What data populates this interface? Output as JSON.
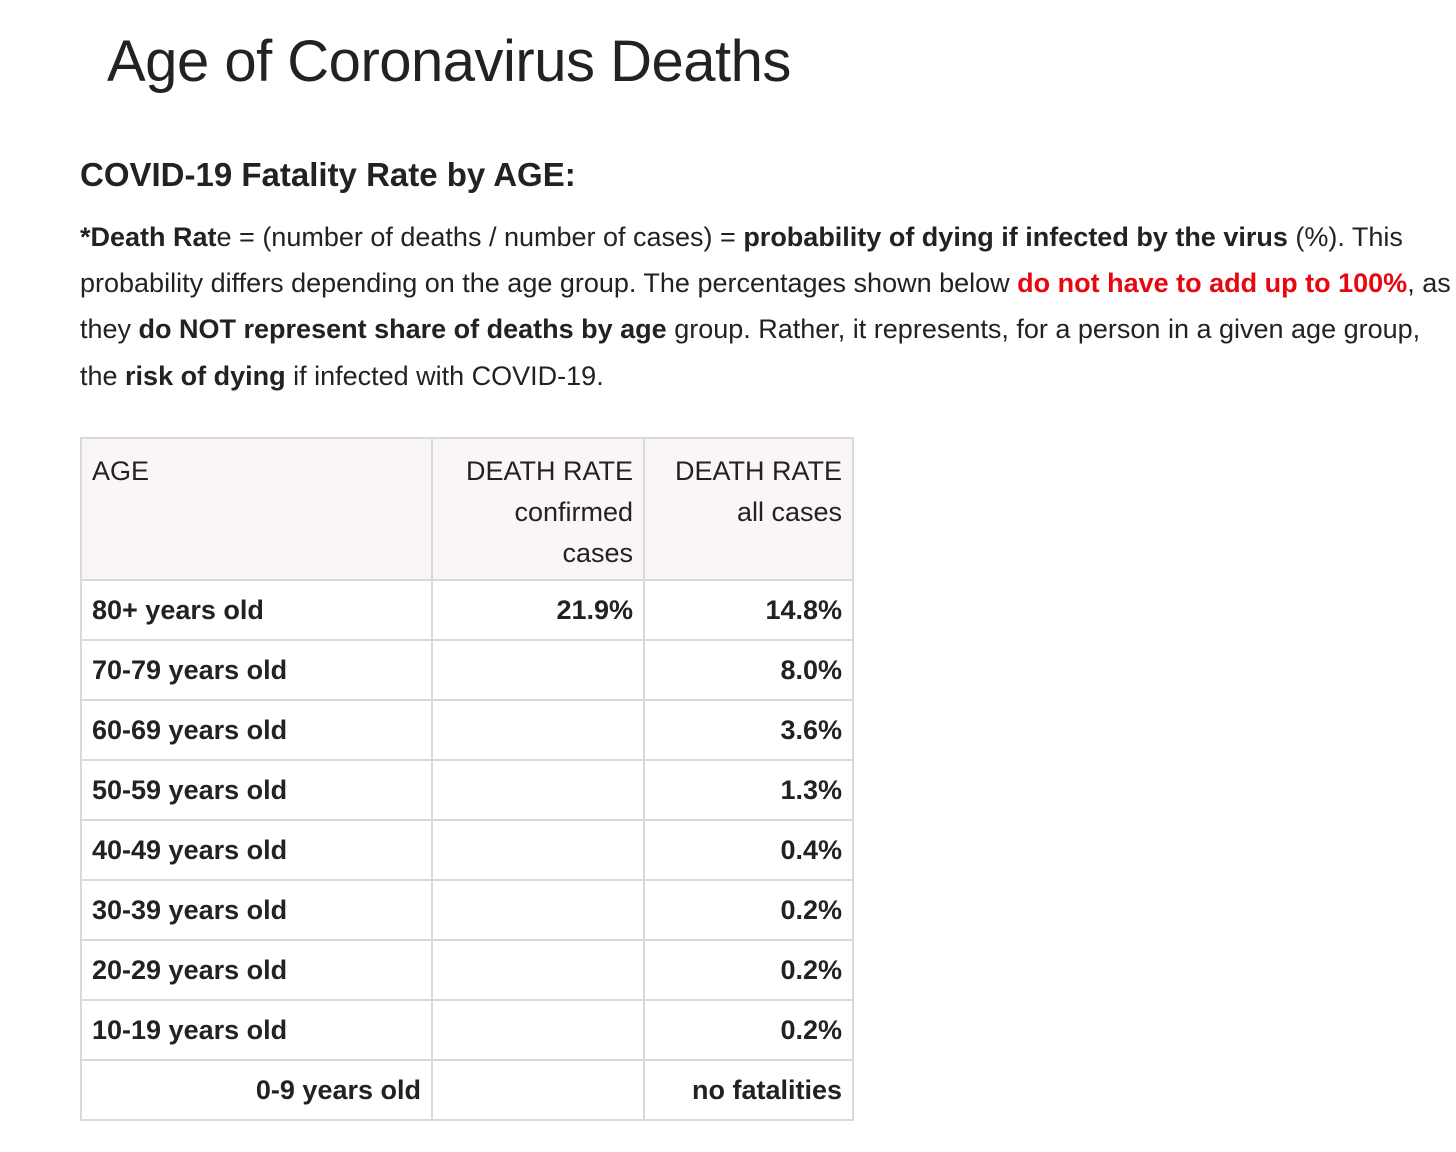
{
  "page": {
    "title": "Age of Coronavirus Deaths"
  },
  "section": {
    "heading": "COVID-19 Fatality Rate by AGE:"
  },
  "intro": {
    "s1_bold": "*Death Rat",
    "s1_plain": "e = (number of deaths / number of cases) = ",
    "s1_bold2": "probability of dying if infected by the virus",
    "s1_end": " (%).",
    "s2": " This probability differs depending on the age group. The percentages shown below ",
    "s2_red": "do not have to add up to 100%",
    "s3": ", as they ",
    "s3_bold": "do NOT represent share of deaths by age",
    "s4": " group. Rather, it represents, for a person in a given age group, the ",
    "s4_bold": "risk of dying",
    "s5": " if infected with COVID-19."
  },
  "colors": {
    "emphasis_red": "#e8060f",
    "header_bg": "#f9f6f5",
    "border": "#d9d9d9"
  },
  "table": {
    "headers": {
      "age": "AGE",
      "confirmed_line1": "DEATH RATE",
      "confirmed_line2": "confirmed",
      "confirmed_line3": "cases",
      "all_line1": "DEATH RATE",
      "all_line2": "all cases"
    },
    "rows": [
      {
        "age": "80+ years old",
        "confirmed": "21.9%",
        "all": "14.8%"
      },
      {
        "age": "70-79 years old",
        "confirmed": "",
        "all": "8.0%"
      },
      {
        "age": "60-69 years old",
        "confirmed": "",
        "all": "3.6%"
      },
      {
        "age": "50-59 years old",
        "confirmed": "",
        "all": "1.3%"
      },
      {
        "age": "40-49 years old",
        "confirmed": "",
        "all": "0.4%"
      },
      {
        "age": "30-39 years old",
        "confirmed": "",
        "all": "0.2%"
      },
      {
        "age": "20-29 years old",
        "confirmed": "",
        "all": "0.2%"
      },
      {
        "age": "10-19 years old",
        "confirmed": "",
        "all": "0.2%"
      },
      {
        "age": "0-9 years old",
        "confirmed": "",
        "all": "no fatalities"
      }
    ]
  }
}
